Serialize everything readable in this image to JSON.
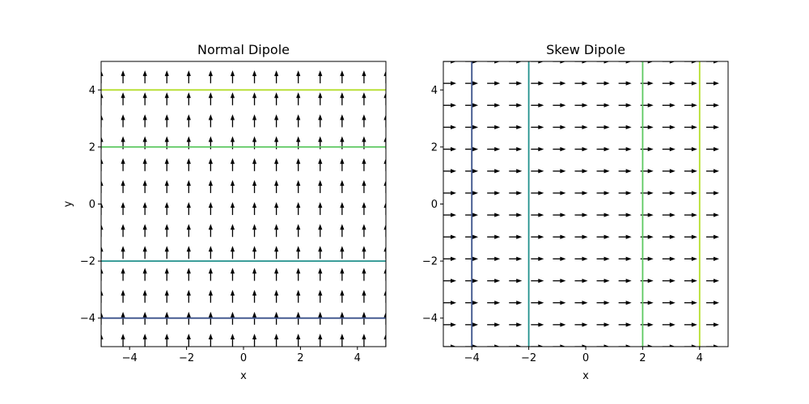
{
  "chart_data": [
    {
      "type": "quiver",
      "title": "Normal Dipole",
      "xlabel": "x",
      "ylabel": "y",
      "xlim": [
        -5,
        5
      ],
      "ylim": [
        -5,
        5
      ],
      "xticks": [
        -4,
        -2,
        0,
        2,
        4
      ],
      "yticks": [
        -4,
        -2,
        0,
        2,
        4
      ],
      "xtick_labels": [
        "−4",
        "−2",
        "0",
        "2",
        "4"
      ],
      "ytick_labels": [
        "−4",
        "−2",
        "0",
        "2",
        "4"
      ],
      "grid": false,
      "field": {
        "start": -5,
        "stop": 5,
        "count": 14,
        "direction": "+y",
        "description": "uniform field, all vectors pointing in +y direction"
      },
      "contours": [
        {
          "orientation": "horizontal",
          "level": -4,
          "color": "#3b528b"
        },
        {
          "orientation": "horizontal",
          "level": -2,
          "color": "#21918c"
        },
        {
          "orientation": "horizontal",
          "level": 2,
          "color": "#5ec962"
        },
        {
          "orientation": "horizontal",
          "level": 4,
          "color": "#b5de2b"
        }
      ]
    },
    {
      "type": "quiver",
      "title": "Skew Dipole",
      "xlabel": "x",
      "ylabel": "",
      "xlim": [
        -5,
        5
      ],
      "ylim": [
        -5,
        5
      ],
      "xticks": [
        -4,
        -2,
        0,
        2,
        4
      ],
      "yticks": [
        -4,
        -2,
        0,
        2,
        4
      ],
      "xtick_labels": [
        "−4",
        "−2",
        "0",
        "2",
        "4"
      ],
      "ytick_labels": [
        "−4",
        "−2",
        "0",
        "2",
        "4"
      ],
      "grid": false,
      "field": {
        "start": -5,
        "stop": 5,
        "count": 14,
        "direction": "+x",
        "description": "uniform field, all vectors pointing in +x direction"
      },
      "contours": [
        {
          "orientation": "vertical",
          "level": -4,
          "color": "#3b528b"
        },
        {
          "orientation": "vertical",
          "level": -2,
          "color": "#21918c"
        },
        {
          "orientation": "vertical",
          "level": 2,
          "color": "#5ec962"
        },
        {
          "orientation": "vertical",
          "level": 4,
          "color": "#b5de2b"
        }
      ]
    }
  ]
}
